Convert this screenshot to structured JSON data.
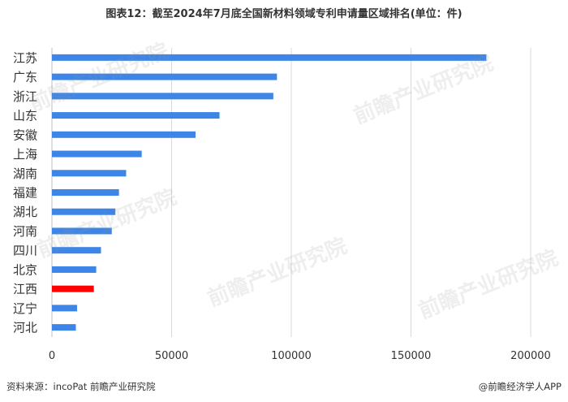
{
  "title": "图表12：截至2024年7月底全国新材料领域专利申请量区域排名(单位：件)",
  "source": "资料来源：incoPat 前瞻产业研究院",
  "credit": "@前瞻经济学人APP",
  "watermark": "前瞻产业研究院",
  "colors": {
    "bar": "#3d85e6",
    "highlight": "#ff0000",
    "grid": "#d9d9d9",
    "text": "#333333"
  },
  "chart_data": {
    "type": "bar",
    "orientation": "horizontal",
    "title": "图表12：截至2024年7月底全国新材料领域专利申请量区域排名(单位：件)",
    "categories": [
      "江苏",
      "广东",
      "浙江",
      "山东",
      "安徽",
      "上海",
      "湖南",
      "福建",
      "湖北",
      "河南",
      "四川",
      "北京",
      "江西",
      "辽宁",
      "河北"
    ],
    "values": [
      181500,
      94000,
      92500,
      70000,
      60000,
      37500,
      31000,
      28000,
      26500,
      25000,
      20500,
      18500,
      17500,
      10500,
      10000
    ],
    "highlight_category": "江西",
    "xlim": [
      0,
      200000
    ],
    "xticks": [
      0,
      50000,
      100000,
      150000,
      200000
    ],
    "xtick_labels": [
      "0",
      "50000",
      "100000",
      "150000",
      "200000"
    ],
    "grid": true,
    "legend": "none"
  }
}
